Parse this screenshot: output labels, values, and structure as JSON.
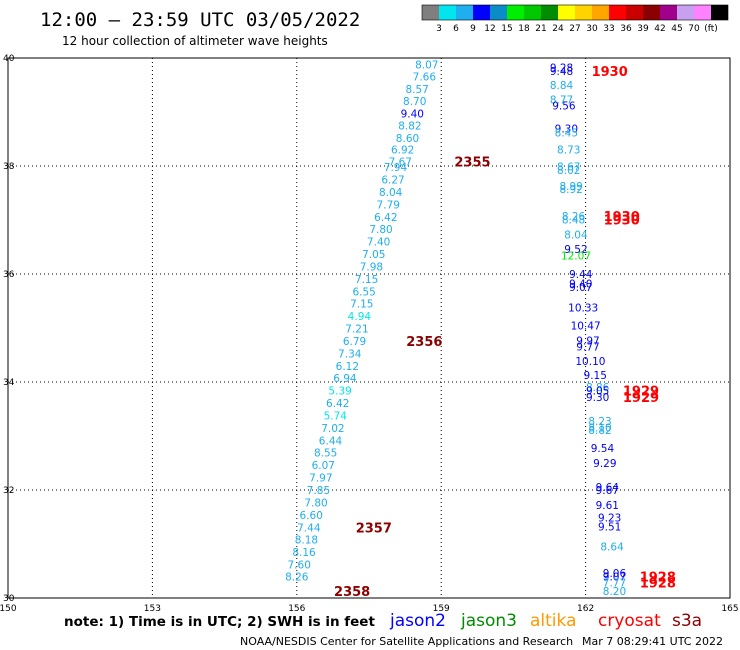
{
  "title": "12:00 – 23:59 UTC 03/05/2022",
  "subtitle": "12 hour collection of altimeter wave heights",
  "colorbar": {
    "colors": [
      "#7f7f7f",
      "#00e5ee",
      "#1faeef",
      "#0000ff",
      "#0a8cc8",
      "#00ee00",
      "#00c800",
      "#008c00",
      "#ffff00",
      "#ffd200",
      "#ffa500",
      "#ff0000",
      "#c80000",
      "#8b0000",
      "#a0008c",
      "#c8a0f0",
      "#ff82ff",
      "#000000"
    ],
    "labels": [
      "3",
      "6",
      "9",
      "12",
      "15",
      "18",
      "21",
      "24",
      "27",
      "30",
      "33",
      "36",
      "39",
      "42",
      "45",
      "70",
      "(ft)"
    ]
  },
  "note": "note:  1) Time is in UTC;  2) SWH is in feet",
  "legend": [
    {
      "label": "jason2",
      "color": "#0000ff"
    },
    {
      "label": "jason3",
      "color": "#008c00"
    },
    {
      "label": "altika",
      "color": "#ff9900"
    },
    {
      "label": "cryosat",
      "color": "#ff0000"
    },
    {
      "label": "s3a",
      "color": "#8b0000"
    }
  ],
  "footer_left": "NOAA/NESDIS Center for Satellite Applications and Research",
  "footer_right": "Mar  7 08:29:41 UTC 2022",
  "chart_data": {
    "type": "scatter",
    "title": "12:00 – 23:59 UTC 03/05/2022",
    "xlim": [
      150,
      165
    ],
    "ylim": [
      30,
      40
    ],
    "xticks": [
      150,
      153,
      156,
      159,
      162,
      165
    ],
    "yticks": [
      30,
      32,
      34,
      36,
      38,
      40
    ],
    "grid": true,
    "series": [
      {
        "name": "s3a track A",
        "points": [
          {
            "x": 158.7,
            "y": 39.88,
            "v": "8.07",
            "c": "#1faeef"
          },
          {
            "x": 158.65,
            "y": 39.66,
            "v": "7.66",
            "c": "#1faeef"
          },
          {
            "x": 158.5,
            "y": 39.43,
            "v": "8.57",
            "c": "#1faeef"
          },
          {
            "x": 158.45,
            "y": 39.2,
            "v": "8.70",
            "c": "#1faeef"
          },
          {
            "x": 158.4,
            "y": 38.97,
            "v": "9.40",
            "c": "#0000ff"
          },
          {
            "x": 158.35,
            "y": 38.75,
            "v": "8.82",
            "c": "#1faeef"
          },
          {
            "x": 158.3,
            "y": 38.52,
            "v": "8.60",
            "c": "#1faeef"
          },
          {
            "x": 158.2,
            "y": 38.31,
            "v": "6.92",
            "c": "#1faeef"
          },
          {
            "x": 158.15,
            "y": 38.08,
            "v": "7.67",
            "c": "#1faeef"
          },
          {
            "x": 158.05,
            "y": 37.98,
            "v": "7.94",
            "c": "#1faeef"
          },
          {
            "x": 158.0,
            "y": 37.75,
            "v": "6.27",
            "c": "#1faeef"
          },
          {
            "x": 157.95,
            "y": 37.52,
            "v": "8.04",
            "c": "#1faeef"
          },
          {
            "x": 157.9,
            "y": 37.29,
            "v": "7.79",
            "c": "#1faeef"
          },
          {
            "x": 157.85,
            "y": 37.06,
            "v": "6.42",
            "c": "#1faeef"
          },
          {
            "x": 157.75,
            "y": 36.83,
            "v": "7.80",
            "c": "#1faeef"
          },
          {
            "x": 157.7,
            "y": 36.6,
            "v": "7.40",
            "c": "#1faeef"
          },
          {
            "x": 157.6,
            "y": 36.37,
            "v": "7.05",
            "c": "#1faeef"
          },
          {
            "x": 157.55,
            "y": 36.14,
            "v": "7.98",
            "c": "#1faeef"
          },
          {
            "x": 157.45,
            "y": 35.91,
            "v": "7.15",
            "c": "#1faeef"
          },
          {
            "x": 157.4,
            "y": 35.68,
            "v": "6.55",
            "c": "#1faeef"
          },
          {
            "x": 157.35,
            "y": 35.45,
            "v": "7.15",
            "c": "#1faeef"
          },
          {
            "x": 157.3,
            "y": 35.22,
            "v": "4.94",
            "c": "#00e5ee"
          },
          {
            "x": 157.25,
            "y": 34.99,
            "v": "7.21",
            "c": "#1faeef"
          },
          {
            "x": 157.2,
            "y": 34.76,
            "v": "6.79",
            "c": "#1faeef"
          },
          {
            "x": 157.1,
            "y": 34.53,
            "v": "7.34",
            "c": "#1faeef"
          },
          {
            "x": 157.05,
            "y": 34.3,
            "v": "6.12",
            "c": "#1faeef"
          },
          {
            "x": 157.0,
            "y": 34.07,
            "v": "6.94",
            "c": "#1faeef"
          },
          {
            "x": 156.9,
            "y": 33.84,
            "v": "5.39",
            "c": "#00e5ee"
          },
          {
            "x": 156.85,
            "y": 33.61,
            "v": "6.42",
            "c": "#1faeef"
          },
          {
            "x": 156.8,
            "y": 33.38,
            "v": "5.74",
            "c": "#00e5ee"
          },
          {
            "x": 156.75,
            "y": 33.15,
            "v": "7.02",
            "c": "#1faeef"
          },
          {
            "x": 156.7,
            "y": 32.92,
            "v": "6.44",
            "c": "#1faeef"
          },
          {
            "x": 156.6,
            "y": 32.69,
            "v": "8.55",
            "c": "#1faeef"
          },
          {
            "x": 156.55,
            "y": 32.46,
            "v": "6.07",
            "c": "#1faeef"
          },
          {
            "x": 156.5,
            "y": 32.23,
            "v": "7.97",
            "c": "#1faeef"
          },
          {
            "x": 156.45,
            "y": 32.0,
            "v": "7.85",
            "c": "#1faeef"
          },
          {
            "x": 156.4,
            "y": 31.77,
            "v": "7.80",
            "c": "#1faeef"
          },
          {
            "x": 156.3,
            "y": 31.54,
            "v": "6.60",
            "c": "#1faeef"
          },
          {
            "x": 156.25,
            "y": 31.31,
            "v": "7.44",
            "c": "#1faeef"
          },
          {
            "x": 156.2,
            "y": 31.08,
            "v": "8.18",
            "c": "#1faeef"
          },
          {
            "x": 156.15,
            "y": 30.85,
            "v": "8.16",
            "c": "#1faeef"
          },
          {
            "x": 156.05,
            "y": 30.62,
            "v": "7.60",
            "c": "#1faeef"
          },
          {
            "x": 156.0,
            "y": 30.4,
            "v": "8.26",
            "c": "#1faeef"
          }
        ]
      },
      {
        "name": "cryosat track B",
        "points": [
          {
            "x": 161.5,
            "y": 39.82,
            "v": "9.28",
            "c": "#0000ff"
          },
          {
            "x": 161.5,
            "y": 39.76,
            "v": "9.48",
            "c": "#0000ff"
          },
          {
            "x": 161.5,
            "y": 39.5,
            "v": "8.84",
            "c": "#1faeef"
          },
          {
            "x": 161.5,
            "y": 39.23,
            "v": "8.77",
            "c": "#1faeef"
          },
          {
            "x": 161.55,
            "y": 39.12,
            "v": "9.56",
            "c": "#0000ff"
          },
          {
            "x": 161.6,
            "y": 38.69,
            "v": "9.30",
            "c": "#0000ff"
          },
          {
            "x": 161.6,
            "y": 38.62,
            "v": "8.45",
            "c": "#1faeef"
          },
          {
            "x": 161.65,
            "y": 38.31,
            "v": "8.73",
            "c": "#1faeef"
          },
          {
            "x": 161.65,
            "y": 37.99,
            "v": "8.67",
            "c": "#1faeef"
          },
          {
            "x": 161.65,
            "y": 37.93,
            "v": "8.02",
            "c": "#1faeef"
          },
          {
            "x": 161.7,
            "y": 37.63,
            "v": "8.99",
            "c": "#1faeef"
          },
          {
            "x": 161.7,
            "y": 37.57,
            "v": "8.92",
            "c": "#1faeef"
          },
          {
            "x": 161.75,
            "y": 37.07,
            "v": "8.26",
            "c": "#1faeef"
          },
          {
            "x": 161.75,
            "y": 37.01,
            "v": "8.48",
            "c": "#1faeef"
          },
          {
            "x": 161.8,
            "y": 36.73,
            "v": "8.04",
            "c": "#1faeef"
          },
          {
            "x": 161.8,
            "y": 36.46,
            "v": "9.52",
            "c": "#0000ff"
          },
          {
            "x": 161.8,
            "y": 36.34,
            "v": "12.07",
            "c": "#00ee00"
          },
          {
            "x": 161.9,
            "y": 36.0,
            "v": "9.44",
            "c": "#0000ff"
          },
          {
            "x": 161.9,
            "y": 35.82,
            "v": "9.40",
            "c": "#0000ff"
          },
          {
            "x": 161.9,
            "y": 35.76,
            "v": "9.07",
            "c": "#0000ff"
          },
          {
            "x": 161.95,
            "y": 35.38,
            "v": "10.33",
            "c": "#0000ff"
          },
          {
            "x": 162.0,
            "y": 35.05,
            "v": "10.47",
            "c": "#0000ff"
          },
          {
            "x": 162.05,
            "y": 34.77,
            "v": "9.97",
            "c": "#0000ff"
          },
          {
            "x": 162.05,
            "y": 34.66,
            "v": "9.77",
            "c": "#0000ff"
          },
          {
            "x": 162.1,
            "y": 34.39,
            "v": "10.10",
            "c": "#0000ff"
          },
          {
            "x": 162.2,
            "y": 34.13,
            "v": "9.15",
            "c": "#0000ff"
          },
          {
            "x": 162.25,
            "y": 33.91,
            "v": "8.86",
            "c": "#1faeef"
          },
          {
            "x": 162.25,
            "y": 33.84,
            "v": "9.05",
            "c": "#0000ff"
          },
          {
            "x": 162.25,
            "y": 33.72,
            "v": "9.30",
            "c": "#0000ff"
          },
          {
            "x": 162.3,
            "y": 33.28,
            "v": "8.23",
            "c": "#1faeef"
          },
          {
            "x": 162.3,
            "y": 33.16,
            "v": "8.10",
            "c": "#1faeef"
          },
          {
            "x": 162.3,
            "y": 33.11,
            "v": "8.82",
            "c": "#1faeef"
          },
          {
            "x": 162.35,
            "y": 32.78,
            "v": "9.54",
            "c": "#0000ff"
          },
          {
            "x": 162.4,
            "y": 32.5,
            "v": "9.29",
            "c": "#0000ff"
          },
          {
            "x": 162.45,
            "y": 32.06,
            "v": "9.64",
            "c": "#0000ff"
          },
          {
            "x": 162.45,
            "y": 32.0,
            "v": "9.67",
            "c": "#0000ff"
          },
          {
            "x": 162.45,
            "y": 31.72,
            "v": "9.61",
            "c": "#0000ff"
          },
          {
            "x": 162.5,
            "y": 31.49,
            "v": "9.23",
            "c": "#0000ff"
          },
          {
            "x": 162.5,
            "y": 31.32,
            "v": "9.51",
            "c": "#0000ff"
          },
          {
            "x": 162.55,
            "y": 30.95,
            "v": "8.64",
            "c": "#1faeef"
          },
          {
            "x": 162.6,
            "y": 30.46,
            "v": "9.06",
            "c": "#0000ff"
          },
          {
            "x": 162.6,
            "y": 30.4,
            "v": "9.07",
            "c": "#0000ff"
          },
          {
            "x": 162.6,
            "y": 30.29,
            "v": "7.77",
            "c": "#1faeef"
          },
          {
            "x": 162.6,
            "y": 30.13,
            "v": "8.20",
            "c": "#1faeef"
          }
        ]
      }
    ],
    "time_labels": [
      {
        "x": 159.65,
        "y": 38.08,
        "v": "2355",
        "c": "#8b0000"
      },
      {
        "x": 158.65,
        "y": 34.76,
        "v": "2356",
        "c": "#8b0000"
      },
      {
        "x": 157.6,
        "y": 31.31,
        "v": "2357",
        "c": "#8b0000"
      },
      {
        "x": 157.15,
        "y": 30.13,
        "v": "2358",
        "c": "#8b0000"
      },
      {
        "x": 162.5,
        "y": 39.76,
        "v": "1930",
        "c": "#ff0000"
      },
      {
        "x": 162.75,
        "y": 37.07,
        "v": "1930",
        "c": "#ff0000"
      },
      {
        "x": 162.75,
        "y": 37.01,
        "v": "1930",
        "c": "#ff0000"
      },
      {
        "x": 163.15,
        "y": 33.84,
        "v": "1929",
        "c": "#ff0000"
      },
      {
        "x": 163.15,
        "y": 33.72,
        "v": "1929",
        "c": "#ff0000"
      },
      {
        "x": 163.5,
        "y": 30.4,
        "v": "1928",
        "c": "#ff0000"
      },
      {
        "x": 163.5,
        "y": 30.29,
        "v": "1928",
        "c": "#ff0000"
      }
    ]
  }
}
